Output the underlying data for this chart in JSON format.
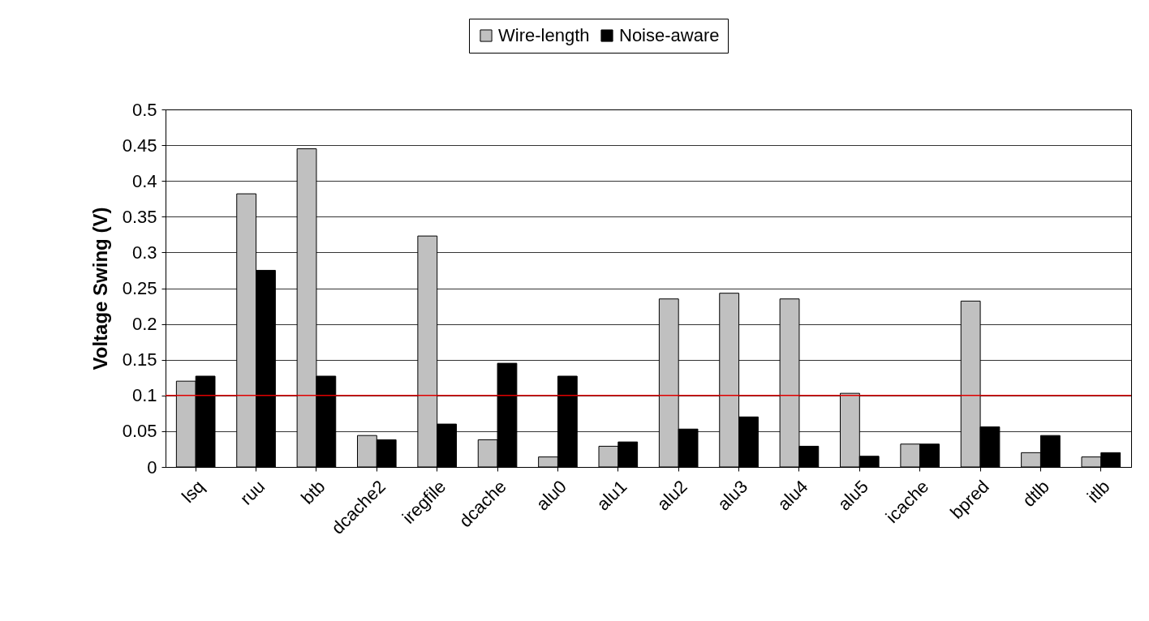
{
  "chart_data": {
    "type": "bar",
    "ylabel": "Voltage Swing (V)",
    "categories": [
      "lsq",
      "ruu",
      "btb",
      "dcache2",
      "iregfile",
      "dcache",
      "alu0",
      "alu1",
      "alu2",
      "alu3",
      "alu4",
      "alu5",
      "icache",
      "bpred",
      "dtlb",
      "itlb"
    ],
    "series": [
      {
        "name": "Wire-length",
        "color": "#c0c0c0",
        "values": [
          0.12,
          0.382,
          0.445,
          0.044,
          0.323,
          0.038,
          0.014,
          0.029,
          0.235,
          0.243,
          0.235,
          0.103,
          0.032,
          0.232,
          0.02,
          0.014
        ]
      },
      {
        "name": "Noise-aware",
        "color": "#000000",
        "values": [
          0.127,
          0.275,
          0.127,
          0.038,
          0.06,
          0.145,
          0.127,
          0.035,
          0.053,
          0.07,
          0.029,
          0.015,
          0.032,
          0.056,
          0.044,
          0.02
        ]
      }
    ],
    "ylim": [
      0,
      0.5
    ],
    "yticks": [
      0,
      0.05,
      0.1,
      0.15,
      0.2,
      0.25,
      0.3,
      0.35,
      0.4,
      0.45,
      0.5
    ],
    "grid": "y",
    "legend": "top",
    "ref_lines": [
      {
        "axis": "y",
        "value": 0.1,
        "color": "#e00000"
      }
    ]
  }
}
